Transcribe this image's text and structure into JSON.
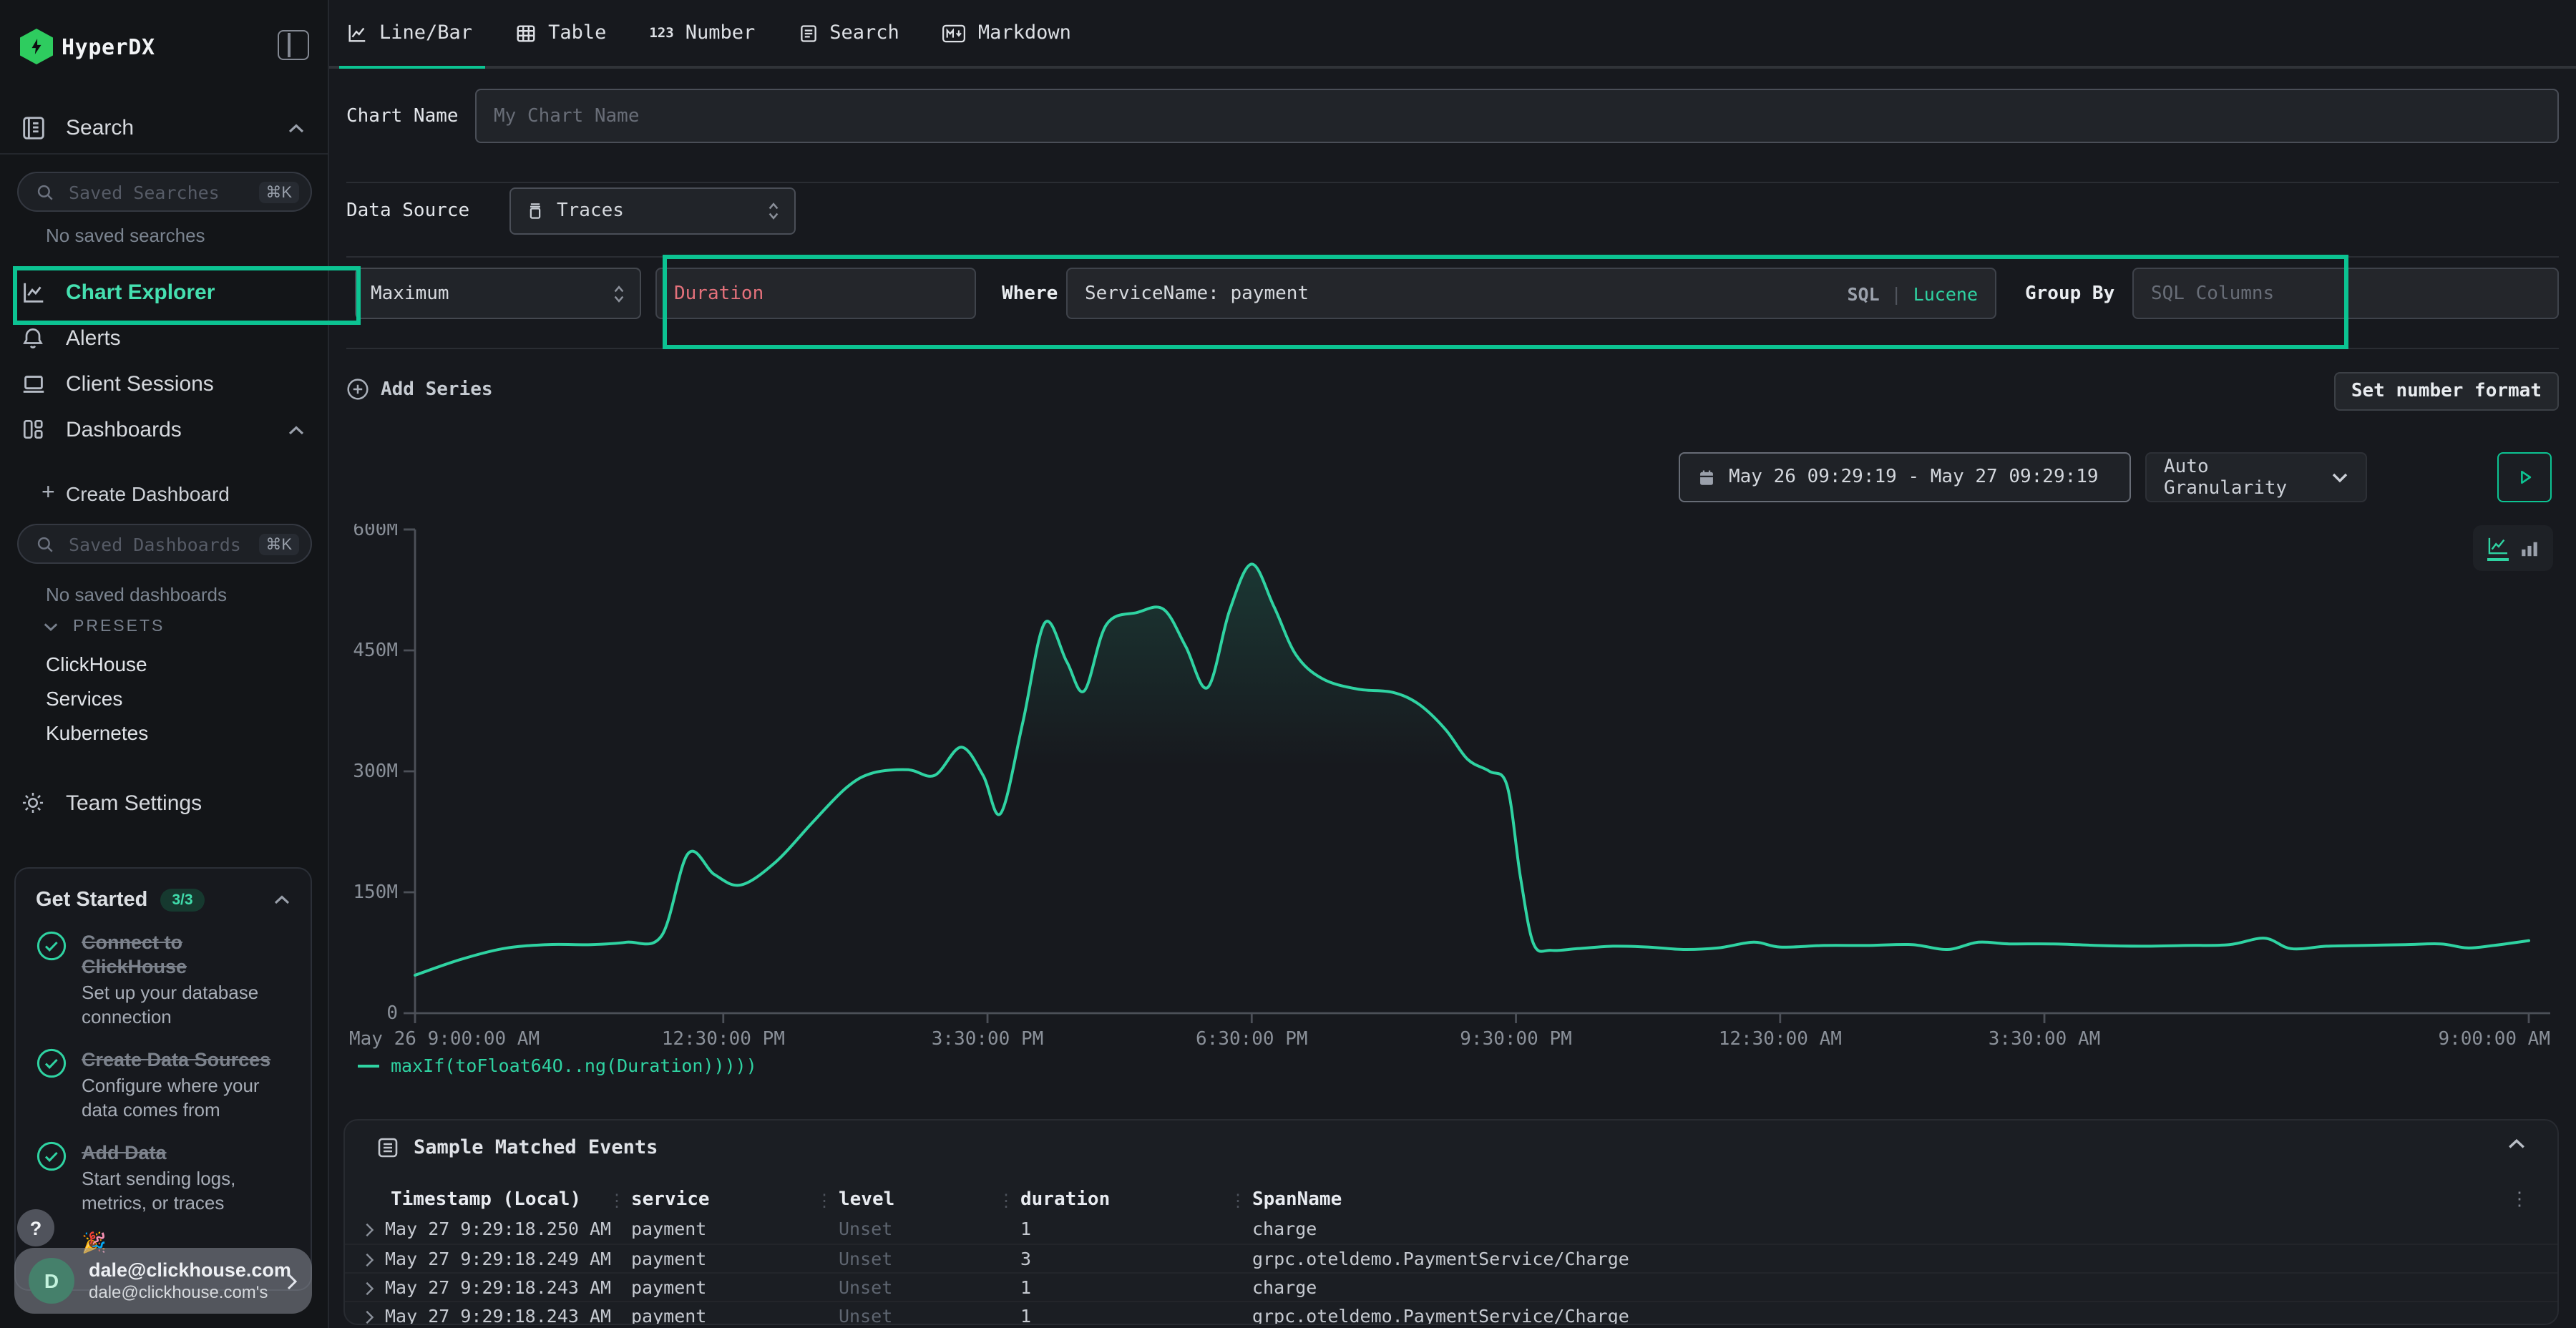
{
  "colors": {
    "accent": "#0cc392",
    "line": "#2fd3a2",
    "teal_text": "#45e0b0",
    "salmon": "#e4717b",
    "badge_bg": "#16392f",
    "badge_text": "#40dcab"
  },
  "sidebar": {
    "logo_text": "HyperDX",
    "sections": {
      "search_label": "Search",
      "saved_searches_placeholder": "Saved Searches",
      "saved_searches_kbd": "⌘K",
      "no_saved_searches": "No saved searches",
      "chart_explorer_label": "Chart Explorer",
      "alerts_label": "Alerts",
      "client_sessions_label": "Client Sessions",
      "dashboards_label": "Dashboards",
      "create_dashboard_plus": "+",
      "create_dashboard_label": "Create Dashboard",
      "saved_dashboards_placeholder": "Saved Dashboards",
      "saved_dashboards_kbd": "⌘K",
      "no_saved_dashboards": "No saved dashboards",
      "presets_label": "PRESETS",
      "team_settings_label": "Team Settings"
    },
    "presets": [
      "ClickHouse",
      "Services",
      "Kubernetes"
    ],
    "get_started": {
      "title": "Get Started",
      "badge": "3/3",
      "items": [
        {
          "title": "Connect to ClickHouse",
          "subtitle": "Set up your database connection"
        },
        {
          "title": "Create Data Sources",
          "subtitle": "Configure where your data comes from"
        },
        {
          "title": "Add Data",
          "subtitle": "Start sending logs, metrics, or traces"
        }
      ],
      "partial_item_emoji": "🎉"
    },
    "help_label": "?",
    "user": {
      "avatar_initial": "D",
      "email": "dale@clickhouse.com",
      "subtitle": "dale@clickhouse.com's"
    }
  },
  "tabs": [
    {
      "label": "Line/Bar",
      "active": true
    },
    {
      "label": "Table",
      "active": false
    },
    {
      "label": "Number",
      "active": false
    },
    {
      "label": "Search",
      "active": false
    },
    {
      "label": "Markdown",
      "active": false
    }
  ],
  "form": {
    "chart_name_label": "Chart Name",
    "chart_name_placeholder": "My Chart Name",
    "data_source_label": "Data Source",
    "data_source_value": "Traces",
    "aggregation_value": "Maximum",
    "field_value": "Duration",
    "where_label": "Where",
    "where_value": "ServiceName: payment",
    "sql_toggle": "SQL",
    "sql_lucene_divider": "|",
    "lucene_toggle": "Lucene",
    "group_by_label": "Group By",
    "group_by_placeholder": "SQL Columns",
    "add_series_label": "Add Series",
    "set_number_format_label": "Set number format"
  },
  "toolbar": {
    "date_range": "May 26 09:29:19 - May 27 09:29:19",
    "granularity": "Auto Granularity"
  },
  "chart_data": {
    "type": "line",
    "title": "",
    "xlabel": "",
    "ylabel": "",
    "grid": false,
    "legend_position": "bottom-left",
    "ylim": [
      0,
      600000000
    ],
    "x_domain_hours": [
      0,
      24
    ],
    "yticks": [
      {
        "v": 0,
        "label": "0"
      },
      {
        "v": 150000000,
        "label": "150M"
      },
      {
        "v": 300000000,
        "label": "300M"
      },
      {
        "v": 450000000,
        "label": "450M"
      },
      {
        "v": 600000000,
        "label": "600M"
      }
    ],
    "xticks": [
      {
        "t": 0,
        "label": "May 26 9:00:00 AM",
        "align": "start"
      },
      {
        "t": 3.5,
        "label": "12:30:00 PM"
      },
      {
        "t": 6.5,
        "label": "3:30:00 PM"
      },
      {
        "t": 9.5,
        "label": "6:30:00 PM"
      },
      {
        "t": 12.5,
        "label": "9:30:00 PM"
      },
      {
        "t": 15.5,
        "label": "12:30:00 AM"
      },
      {
        "t": 18.5,
        "label": "3:30:00 AM"
      },
      {
        "t": 24,
        "label": "9:00:00 AM",
        "align": "end"
      }
    ],
    "series": [
      {
        "name": "maxIf(toFloat64O..ng(Duration)))))",
        "color": "#2fd3a2",
        "points_hours_vs_millions": [
          [
            0,
            47
          ],
          [
            0.5,
            66
          ],
          [
            1,
            80
          ],
          [
            1.5,
            85
          ],
          [
            2,
            85
          ],
          [
            2.4,
            88
          ],
          [
            2.8,
            96
          ],
          [
            3.1,
            198
          ],
          [
            3.4,
            172
          ],
          [
            3.7,
            159
          ],
          [
            4.1,
            188
          ],
          [
            4.5,
            235
          ],
          [
            4.9,
            280
          ],
          [
            5.2,
            298
          ],
          [
            5.6,
            302
          ],
          [
            5.9,
            295
          ],
          [
            6.2,
            330
          ],
          [
            6.45,
            295
          ],
          [
            6.65,
            248
          ],
          [
            6.9,
            360
          ],
          [
            7.15,
            484
          ],
          [
            7.4,
            436
          ],
          [
            7.6,
            400
          ],
          [
            7.85,
            482
          ],
          [
            8.2,
            497
          ],
          [
            8.5,
            501
          ],
          [
            8.75,
            455
          ],
          [
            9,
            404
          ],
          [
            9.25,
            500
          ],
          [
            9.5,
            557
          ],
          [
            9.75,
            505
          ],
          [
            10,
            445
          ],
          [
            10.3,
            415
          ],
          [
            10.7,
            402
          ],
          [
            11.1,
            398
          ],
          [
            11.4,
            383
          ],
          [
            11.7,
            352
          ],
          [
            11.95,
            315
          ],
          [
            12.2,
            300
          ],
          [
            12.4,
            282
          ],
          [
            12.55,
            170
          ],
          [
            12.7,
            86
          ],
          [
            12.9,
            78
          ],
          [
            13.2,
            80
          ],
          [
            13.6,
            83
          ],
          [
            14,
            82
          ],
          [
            14.4,
            79
          ],
          [
            14.8,
            81
          ],
          [
            15.2,
            88
          ],
          [
            15.5,
            82
          ],
          [
            16,
            84
          ],
          [
            16.5,
            84
          ],
          [
            17,
            85
          ],
          [
            17.4,
            79
          ],
          [
            17.75,
            88
          ],
          [
            18.1,
            86
          ],
          [
            18.6,
            86
          ],
          [
            19.1,
            84
          ],
          [
            19.6,
            83
          ],
          [
            20.1,
            84
          ],
          [
            20.6,
            85
          ],
          [
            21,
            93
          ],
          [
            21.3,
            80
          ],
          [
            21.7,
            83
          ],
          [
            22.1,
            84
          ],
          [
            22.6,
            85
          ],
          [
            23,
            86
          ],
          [
            23.3,
            81
          ],
          [
            23.6,
            84
          ],
          [
            24,
            90
          ]
        ]
      }
    ]
  },
  "events": {
    "title": "Sample Matched Events",
    "columns": [
      "Timestamp (Local)",
      "service",
      "level",
      "duration",
      "SpanName"
    ],
    "rows": [
      {
        "timestamp": "May 27 9:29:18.250 AM",
        "service": "payment",
        "level": "Unset",
        "duration": "1",
        "span_name": "charge"
      },
      {
        "timestamp": "May 27 9:29:18.249 AM",
        "service": "payment",
        "level": "Unset",
        "duration": "3",
        "span_name": "grpc.oteldemo.PaymentService/Charge"
      },
      {
        "timestamp": "May 27 9:29:18.243 AM",
        "service": "payment",
        "level": "Unset",
        "duration": "1",
        "span_name": "charge"
      },
      {
        "timestamp": "May 27 9:29:18.243 AM",
        "service": "payment",
        "level": "Unset",
        "duration": "1",
        "span_name": "grpc.oteldemo.PaymentService/Charge"
      }
    ]
  }
}
